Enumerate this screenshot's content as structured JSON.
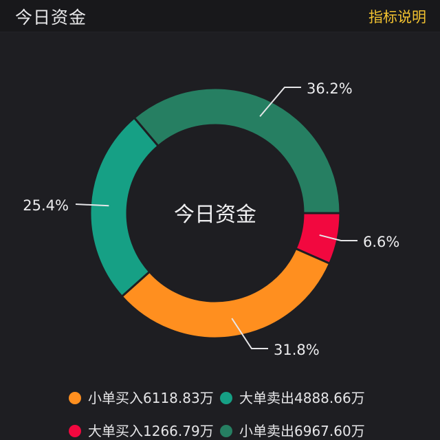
{
  "header": {
    "title": "今日资金",
    "help_link": "指标说明"
  },
  "chart_data": {
    "type": "pie",
    "center_label": "今日资金",
    "slices": [
      {
        "label": "6.6%",
        "value": 6.6,
        "color": "#f2083f"
      },
      {
        "label": "31.8%",
        "value": 31.8,
        "color": "#ff8f1f"
      },
      {
        "label": "25.4%",
        "value": 25.4,
        "color": "#16a085"
      },
      {
        "label": "36.2%",
        "value": 36.2,
        "color": "#267f62"
      }
    ]
  },
  "legend": [
    {
      "text": "小单买入6118.83万",
      "color": "#ff8f1f"
    },
    {
      "text": "大单卖出4888.66万",
      "color": "#16a085"
    },
    {
      "text": "大单买入1266.79万",
      "color": "#f2083f"
    },
    {
      "text": "小单卖出6967.60万",
      "color": "#267f62"
    }
  ]
}
